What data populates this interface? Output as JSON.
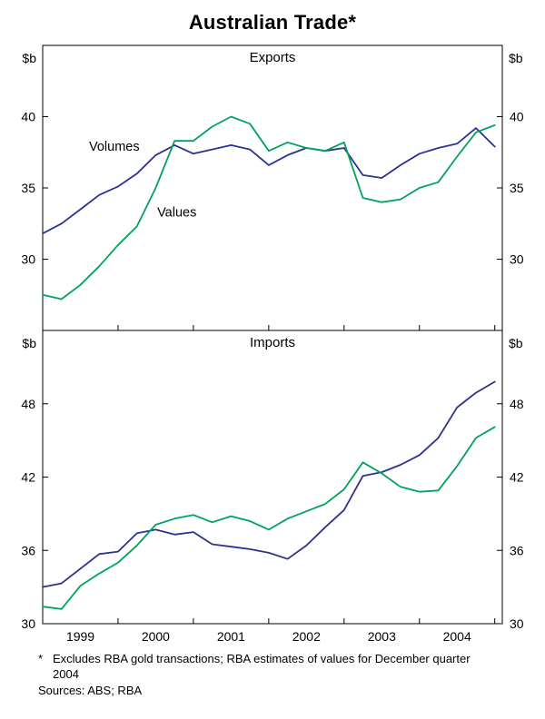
{
  "title": "Australian Trade*",
  "footnote": {
    "marker": "*",
    "text": "Excludes RBA gold transactions; RBA estimates of values for December quarter 2004",
    "sources": "Sources: ABS; RBA"
  },
  "colors": {
    "volumes": "#2d3192",
    "values": "#00a25d",
    "frame": "#000000"
  },
  "x_axis": {
    "year_labels": [
      "1999",
      "2000",
      "2001",
      "2002",
      "2003",
      "2004"
    ],
    "range_start": 1999.0,
    "range_end": 2005.1
  },
  "chart_data": [
    {
      "type": "line",
      "title": "Exports",
      "unit": "$b",
      "ylim": [
        25,
        45
      ],
      "yticks": [
        30,
        35,
        40
      ],
      "grid": false,
      "legend_position": "inline-labels",
      "categories": [
        "1998Q4",
        "1999Q1",
        "1999Q2",
        "1999Q3",
        "1999Q4",
        "2000Q1",
        "2000Q2",
        "2000Q3",
        "2000Q4",
        "2001Q1",
        "2001Q2",
        "2001Q3",
        "2001Q4",
        "2002Q1",
        "2002Q2",
        "2002Q3",
        "2002Q4",
        "2003Q1",
        "2003Q2",
        "2003Q3",
        "2003Q4",
        "2004Q1",
        "2004Q2",
        "2004Q3",
        "2004Q4"
      ],
      "series": [
        {
          "name": "Volumes",
          "color": "#2d3192",
          "values": [
            31.8,
            32.5,
            33.5,
            34.5,
            35.1,
            36.0,
            37.3,
            38.0,
            37.4,
            37.7,
            38.0,
            37.7,
            36.6,
            37.3,
            37.8,
            37.6,
            37.8,
            35.9,
            35.7,
            36.6,
            37.4,
            37.8,
            38.1,
            39.2,
            37.9
          ]
        },
        {
          "name": "Values",
          "color": "#00a25d",
          "values": [
            27.5,
            27.2,
            28.2,
            29.5,
            31.0,
            32.3,
            35.0,
            38.3,
            38.3,
            39.3,
            40.0,
            39.5,
            37.6,
            38.2,
            37.8,
            37.6,
            38.2,
            34.3,
            34.0,
            34.2,
            35.0,
            35.4,
            37.2,
            38.9,
            39.4
          ]
        }
      ],
      "annotations": [
        {
          "text": "Volumes",
          "x_year": 1999.95,
          "y_value": 37.6
        },
        {
          "text": "Values",
          "x_year": 2000.78,
          "y_value": 33.0
        }
      ]
    },
    {
      "type": "line",
      "title": "Imports",
      "unit": "$b",
      "ylim": [
        30,
        54
      ],
      "yticks": [
        30,
        36,
        42,
        48
      ],
      "grid": false,
      "legend_position": "none",
      "categories": [
        "1998Q4",
        "1999Q1",
        "1999Q2",
        "1999Q3",
        "1999Q4",
        "2000Q1",
        "2000Q2",
        "2000Q3",
        "2000Q4",
        "2001Q1",
        "2001Q2",
        "2001Q3",
        "2001Q4",
        "2002Q1",
        "2002Q2",
        "2002Q3",
        "2002Q4",
        "2003Q1",
        "2003Q2",
        "2003Q3",
        "2003Q4",
        "2004Q1",
        "2004Q2",
        "2004Q3",
        "2004Q4"
      ],
      "series": [
        {
          "name": "Volumes",
          "color": "#2d3192",
          "values": [
            33.0,
            33.3,
            34.5,
            35.7,
            35.9,
            37.4,
            37.7,
            37.3,
            37.5,
            36.5,
            36.3,
            36.1,
            35.8,
            35.3,
            36.4,
            37.9,
            39.3,
            42.1,
            42.4,
            43.0,
            43.8,
            45.2,
            47.7,
            48.9,
            49.8
          ]
        },
        {
          "name": "Values",
          "color": "#00a25d",
          "values": [
            31.4,
            31.2,
            33.1,
            34.1,
            35.0,
            36.4,
            38.1,
            38.6,
            38.9,
            38.3,
            38.8,
            38.4,
            37.7,
            38.6,
            39.2,
            39.8,
            41.0,
            43.2,
            42.3,
            41.2,
            40.8,
            40.9,
            42.9,
            45.2,
            46.1
          ]
        }
      ],
      "annotations": []
    }
  ]
}
